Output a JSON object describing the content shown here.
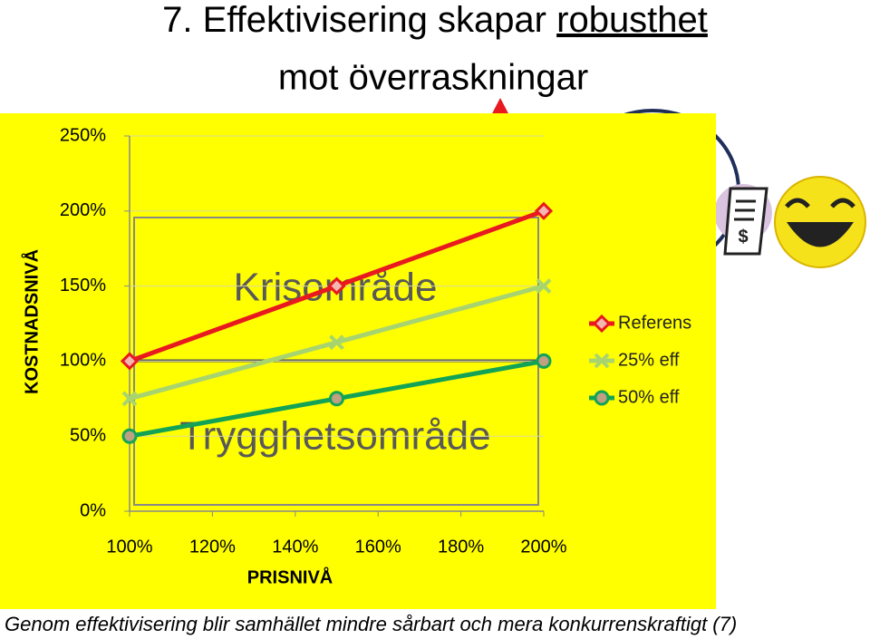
{
  "chart_data": {
    "type": "line",
    "title": [
      "7. Effektivisering skapar ",
      "robusthet",
      "mot överraskningar"
    ],
    "x_label": "PRISNIVÅ",
    "y_label": "KOSTNADSNIVÅ",
    "x": [
      100,
      150,
      200
    ],
    "series": [
      {
        "name": "Referens",
        "color": "#e8191f",
        "marker": "diamond",
        "values": [
          100,
          150,
          200
        ]
      },
      {
        "name": "25% eff",
        "color": "#a8d46f",
        "marker": "cross",
        "values": [
          75,
          112.5,
          150
        ]
      },
      {
        "name": "50% eff",
        "color": "#13a356",
        "marker": "circle",
        "values": [
          50,
          75,
          100
        ]
      }
    ],
    "xlim": [
      100,
      200
    ],
    "xticks": [
      {
        "value": 100,
        "label": "100%"
      },
      {
        "value": 120,
        "label": "120%"
      },
      {
        "value": 140,
        "label": "140%"
      },
      {
        "value": 160,
        "label": "160%"
      },
      {
        "value": 180,
        "label": "180%"
      },
      {
        "value": 200,
        "label": "200%"
      }
    ],
    "ylim": [
      0,
      250
    ],
    "yticks": [
      {
        "value": 0,
        "label": "0%"
      },
      {
        "value": 50,
        "label": "50%"
      },
      {
        "value": 100,
        "label": "100%"
      },
      {
        "value": 150,
        "label": "150%"
      },
      {
        "value": 200,
        "label": "200%"
      },
      {
        "value": 250,
        "label": "250%"
      }
    ],
    "grid": true,
    "legend": "right",
    "annotations": [
      "Krisområde",
      "Trygghetsområde"
    ],
    "footer": "Genom effektivisering blir samhället mindre sårbart och mera konkurrenskraftigt (7)"
  }
}
